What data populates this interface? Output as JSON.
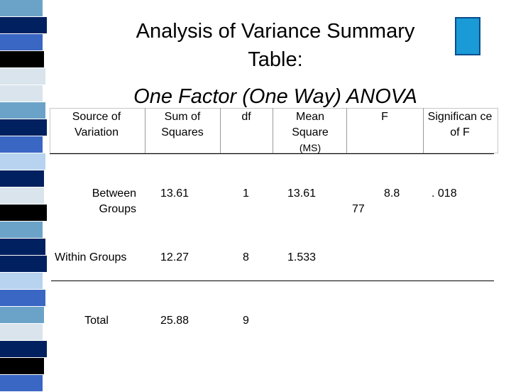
{
  "title": "Analysis of Variance Summary Table:",
  "subtitle": "One Factor (One Way) ANOVA",
  "colors": {
    "stripe_light": "#d9e4ec",
    "stripe_dark": "#002060",
    "stripe_mid": "#6ba3c8",
    "stripe_blue": "#3a66c4",
    "accent_box": "#1a9ad6",
    "accent_border": "#0a4d8c"
  },
  "table": {
    "headers": {
      "source": "Source of Variation",
      "ss": "Sum of Squares",
      "df": "df",
      "ms": "Mean Square",
      "ms_sub": "(MS)",
      "f": "F",
      "sig": "Significan ce of F"
    },
    "rows": [
      {
        "source": "Between Groups",
        "ss": "13.61",
        "df": "1",
        "ms": "13.61",
        "f_part1": "8.8",
        "f_part2": "77",
        "sig": ". 018"
      },
      {
        "source": "Within Groups",
        "ss": "12.27",
        "df": "8",
        "ms": "1.533"
      },
      {
        "source": "Total",
        "ss": "25.88",
        "df": "9"
      }
    ]
  }
}
